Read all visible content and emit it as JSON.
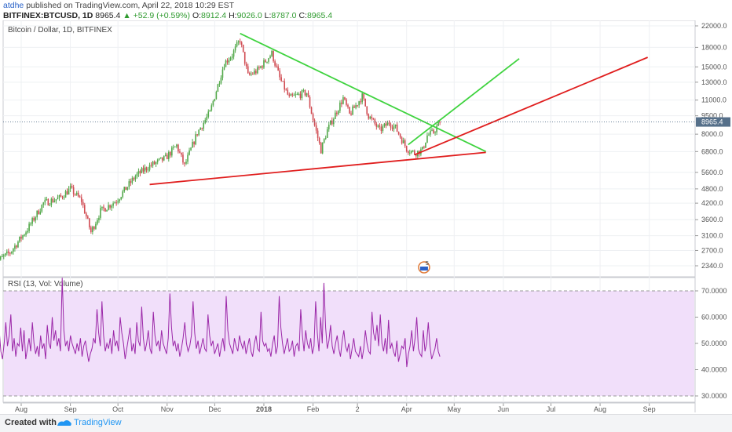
{
  "header": {
    "user": "atdhe",
    "published": "published on TradingView.com, April 22, 2018 10:29 EST",
    "symbol": "BITFINEX:BTCUSD, 1D",
    "last": "8965.4",
    "change": "▲ +52.9 (+0.59%)",
    "o_label": "O:",
    "o": "8912.4",
    "h_label": "H:",
    "h": "9026.0",
    "l_label": "L:",
    "l": "8787.0",
    "c_label": "C:",
    "c": "8965.4"
  },
  "footer": {
    "created": "Created with",
    "brand": "TradingView"
  },
  "colors": {
    "up": "#52a84a",
    "down": "#d04b52",
    "green_line": "#3fd33f",
    "red_line": "#e01e1e",
    "rsi": "#9b27a8",
    "rsi_bg": "#f1dffa",
    "current": "#56708a"
  },
  "chart_data": [
    {
      "type": "candlestick",
      "title": "Bitcoin / Dollar, 1D, BITFINEX",
      "y_scale": "log",
      "y_ticks": [
        22000,
        18000,
        15000,
        13000,
        11000,
        9500,
        8000,
        6800,
        5600,
        4800,
        4200,
        3600,
        3100,
        2700,
        2340
      ],
      "y_tick_labels": [
        "22000.0",
        "18000.0",
        "15000.0",
        "13000.0",
        "11000.0",
        "9500.0",
        "8000.0",
        "6800.0",
        "5600.0",
        "4800.0",
        "4200.0",
        "3600.0",
        "3100.0",
        "2700.0",
        "2340.0"
      ],
      "current_price_label": "8965.4",
      "x_tick_labels": [
        "Aug",
        "Sep",
        "Oct",
        "Nov",
        "Dec",
        "2018",
        "Feb",
        "2",
        "Apr",
        "May",
        "Jun",
        "Jul",
        "Aug",
        "Sep"
      ],
      "x_tick_dates": [
        "2017-08-01",
        "2017-09-01",
        "2017-10-01",
        "2017-11-01",
        "2017-12-01",
        "2018-01-01",
        "2018-02-01",
        "2018-03-01",
        "2018-04-01",
        "2018-05-01",
        "2018-06-01",
        "2018-07-01",
        "2018-08-01",
        "2018-09-01"
      ],
      "marker_label": "5",
      "price_anchors": [
        [
          "2017-07-15",
          2400
        ],
        [
          "2017-07-25",
          2650
        ],
        [
          "2017-08-05",
          3300
        ],
        [
          "2017-08-15",
          4200
        ],
        [
          "2017-08-25",
          4400
        ],
        [
          "2017-09-01",
          4800
        ],
        [
          "2017-09-08",
          4300
        ],
        [
          "2017-09-14",
          3200
        ],
        [
          "2017-09-20",
          3900
        ],
        [
          "2017-09-30",
          4300
        ],
        [
          "2017-10-12",
          5400
        ],
        [
          "2017-10-20",
          5900
        ],
        [
          "2017-10-31",
          6400
        ],
        [
          "2017-11-07",
          7200
        ],
        [
          "2017-11-12",
          5950
        ],
        [
          "2017-11-20",
          8100
        ],
        [
          "2017-11-28",
          9800
        ],
        [
          "2017-12-07",
          15500
        ],
        [
          "2017-12-12",
          16800
        ],
        [
          "2017-12-17",
          19300
        ],
        [
          "2017-12-22",
          13800
        ],
        [
          "2017-12-28",
          14500
        ],
        [
          "2018-01-06",
          17000
        ],
        [
          "2018-01-11",
          13500
        ],
        [
          "2018-01-17",
          11200
        ],
        [
          "2018-01-22",
          11500
        ],
        [
          "2018-01-28",
          11800
        ],
        [
          "2018-02-01",
          9200
        ],
        [
          "2018-02-06",
          6900
        ],
        [
          "2018-02-10",
          8300
        ],
        [
          "2018-02-20",
          11200
        ],
        [
          "2018-02-24",
          9600
        ],
        [
          "2018-03-04",
          11400
        ],
        [
          "2018-03-08",
          9500
        ],
        [
          "2018-03-15",
          8300
        ],
        [
          "2018-03-21",
          8900
        ],
        [
          "2018-03-25",
          8500
        ],
        [
          "2018-04-01",
          7000
        ],
        [
          "2018-04-06",
          6700
        ],
        [
          "2018-04-11",
          6900
        ],
        [
          "2018-04-14",
          7900
        ],
        [
          "2018-04-18",
          8150
        ],
        [
          "2018-04-22",
          8965
        ]
      ],
      "trendlines": [
        {
          "color": "green",
          "from": [
            "2017-12-17",
            20500
          ],
          "to": [
            "2018-05-21",
            6800
          ]
        },
        {
          "color": "green",
          "from": [
            "2018-04-02",
            7250
          ],
          "to": [
            "2018-06-11",
            16200
          ]
        },
        {
          "color": "red",
          "from": [
            "2017-10-21",
            5000
          ],
          "to": [
            "2018-05-21",
            6750
          ]
        },
        {
          "color": "red",
          "from": [
            "2018-04-06",
            6600
          ],
          "to": [
            "2018-08-31",
            16400
          ]
        }
      ]
    },
    {
      "type": "line",
      "title": "RSI (13, Vol: Volume)",
      "ylim": [
        27.5,
        75
      ],
      "y_ticks": [
        70,
        60,
        50,
        40,
        30
      ],
      "y_tick_labels": [
        "70.0000",
        "60.0000",
        "50.0000",
        "40.0000",
        "30.0000"
      ],
      "bands": [
        30,
        70
      ],
      "values": [
        48,
        52,
        46,
        55,
        47,
        44,
        50,
        58,
        49,
        53,
        61,
        47,
        52,
        45,
        50,
        49,
        56,
        47,
        55,
        44,
        48,
        52,
        47,
        58,
        50,
        46,
        49,
        45,
        53,
        48,
        50,
        44,
        57,
        50,
        48,
        60,
        51,
        55,
        49,
        52,
        47,
        75,
        55,
        49,
        51,
        47,
        53,
        50,
        48,
        46,
        50,
        47,
        52,
        45,
        49,
        51,
        47,
        43,
        46,
        48,
        52,
        50,
        63,
        54,
        49,
        66,
        53,
        47,
        50,
        48,
        52,
        46,
        55,
        49,
        51,
        47,
        60,
        54,
        50,
        44,
        48,
        52,
        56,
        47,
        50,
        46,
        58,
        51,
        49,
        64,
        52,
        47,
        50,
        55,
        48,
        46,
        62,
        53,
        49,
        51,
        47,
        55,
        50,
        48,
        46,
        52,
        69,
        56,
        49,
        51,
        47,
        50,
        45,
        48,
        52,
        58,
        50,
        47,
        49,
        53,
        66,
        54,
        48,
        51,
        46,
        49,
        52,
        48,
        47,
        61,
        53,
        49,
        51,
        46,
        48,
        50,
        45,
        49,
        52,
        47,
        68,
        55,
        50,
        48,
        46,
        52,
        49,
        47,
        53,
        50,
        48,
        51,
        46,
        49,
        52,
        47,
        45,
        50,
        53,
        48,
        47,
        62,
        51,
        49,
        50,
        47,
        48,
        45,
        50,
        53,
        46,
        49,
        68,
        56,
        50,
        46,
        49,
        52,
        47,
        48,
        51,
        45,
        49,
        50,
        47,
        63,
        53,
        47,
        55,
        50,
        48,
        52,
        46,
        49,
        66,
        54,
        47,
        60,
        50,
        73,
        56,
        48,
        51,
        57,
        49,
        46,
        50,
        53,
        48,
        45,
        51,
        55,
        49,
        47,
        50,
        44,
        48,
        52,
        47,
        46,
        45,
        49,
        44,
        48,
        55,
        50,
        47,
        46,
        62,
        54,
        51,
        57,
        49,
        61,
        50,
        47,
        52,
        46,
        59,
        48,
        50,
        47,
        45,
        51,
        43,
        46,
        49,
        48,
        52,
        41,
        46,
        49,
        55,
        47,
        52,
        60,
        48,
        46,
        45,
        55,
        47,
        50,
        58,
        49,
        44,
        46,
        48,
        52,
        47,
        45
      ]
    }
  ]
}
